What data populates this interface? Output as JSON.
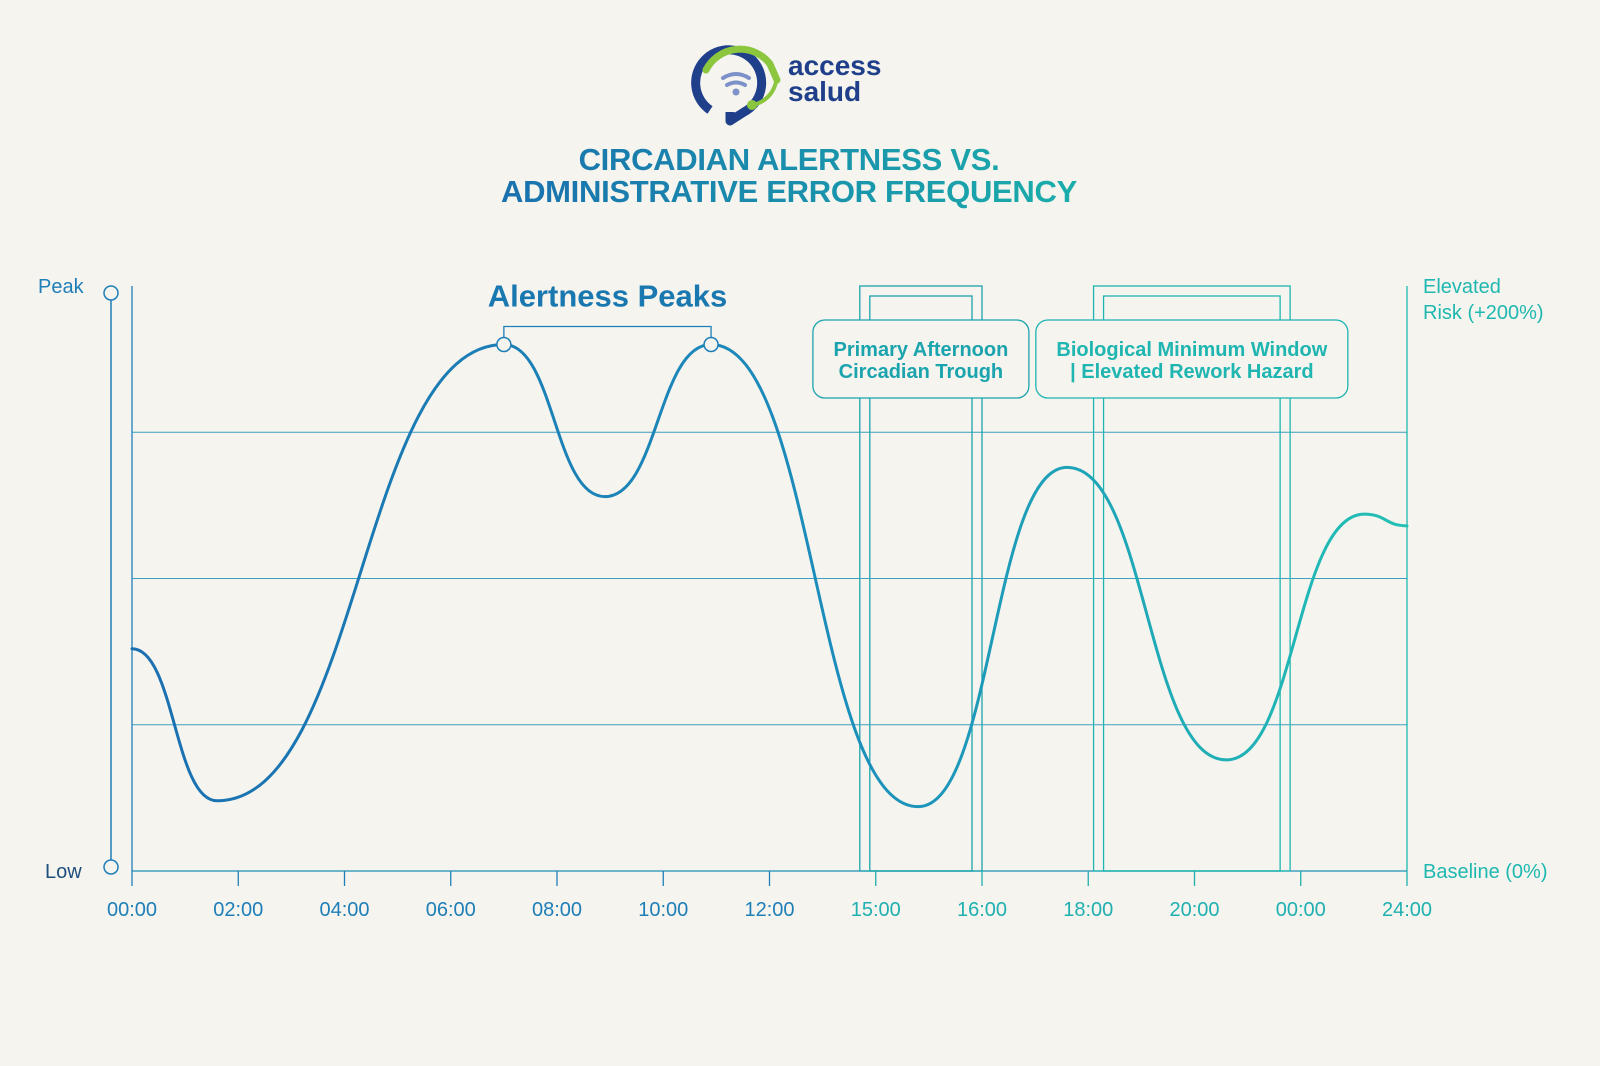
{
  "brand": {
    "line1": "access",
    "line2": "salud"
  },
  "colors": {
    "background": "#f5f4ef",
    "blue": "#1e7fb8",
    "teal": "#1fb8b0",
    "title_blue": "#1a78b0",
    "title_teal": "#17a6ac",
    "logo_navy": "#1f3f8a",
    "logo_green": "#8cc63f"
  },
  "chart_data": {
    "type": "line",
    "title_lines": [
      "CIRCADIAN ALERTNESS VS.",
      "ADMINISTRATIVE ERROR FREQUENCY"
    ],
    "left_axis": {
      "top_label": "Peak",
      "bottom_label": "Low"
    },
    "right_axis": {
      "top_label_lines": [
        "Elevated",
        "Risk (+200%)"
      ],
      "bottom_label": "Baseline (0%)"
    },
    "x_tick_labels": [
      "00:00",
      "02:00",
      "04:00",
      "06:00",
      "08:00",
      "10:00",
      "12:00",
      "15:00",
      "16:00",
      "18:00",
      "20:00",
      "00:00",
      "24:00"
    ],
    "x_range": [
      0,
      12
    ],
    "y_range": [
      0,
      1
    ],
    "gridlines_y": [
      0.25,
      0.5,
      0.75
    ],
    "series": [
      {
        "segment": "alertness",
        "color": "#1e7fb8",
        "points": [
          [
            0,
            0.38
          ],
          [
            0.8,
            0.12
          ],
          [
            3.5,
            0.9
          ],
          [
            4.45,
            0.64
          ],
          [
            5.45,
            0.9
          ],
          [
            7.4,
            0.11
          ]
        ]
      },
      {
        "segment": "error-frequency",
        "color": "#1fb8b0",
        "points": [
          [
            7.4,
            0.11
          ],
          [
            8.8,
            0.69
          ],
          [
            10.3,
            0.19
          ],
          [
            11.6,
            0.61
          ],
          [
            12,
            0.59
          ]
        ]
      }
    ],
    "peak_annotation": {
      "label": "Alertness Peaks",
      "x": [
        3.5,
        5.45
      ]
    },
    "windows": [
      {
        "label_lines": [
          "Primary Afternoon",
          "Circadian Trough"
        ],
        "x_start": 6.85,
        "x_end": 8.0
      },
      {
        "label_lines": [
          "Biological Minimum Window",
          "| Elevated Rework Hazard"
        ],
        "x_start": 9.05,
        "x_end": 10.9
      }
    ]
  }
}
